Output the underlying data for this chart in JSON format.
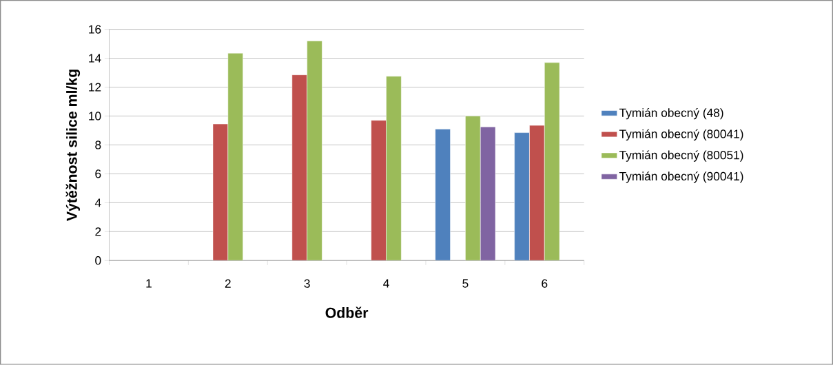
{
  "chart_data": {
    "type": "bar",
    "xlabel": "Odběr",
    "ylabel": "Výtěžnost silice ml/kg",
    "categories": [
      "1",
      "2",
      "3",
      "4",
      "5",
      "6"
    ],
    "series": [
      {
        "name": "Tymián obecný (48)",
        "color": "#4f81bd",
        "values": [
          null,
          null,
          null,
          null,
          9.1,
          8.85
        ]
      },
      {
        "name": "Tymián obecný (80041)",
        "color": "#c0504d",
        "values": [
          null,
          9.45,
          12.85,
          9.7,
          null,
          9.35
        ]
      },
      {
        "name": "Tymián obecný (80051)",
        "color": "#9bbb59",
        "values": [
          null,
          14.35,
          15.2,
          12.75,
          10.0,
          13.7
        ]
      },
      {
        "name": "Tymián obecný (90041)",
        "color": "#8064a2",
        "values": [
          null,
          null,
          null,
          null,
          9.25,
          null
        ]
      }
    ],
    "ylim": [
      0,
      16
    ],
    "yticks": [
      0,
      2,
      4,
      6,
      8,
      10,
      12,
      14,
      16
    ],
    "grid": "y",
    "legend": "right"
  }
}
